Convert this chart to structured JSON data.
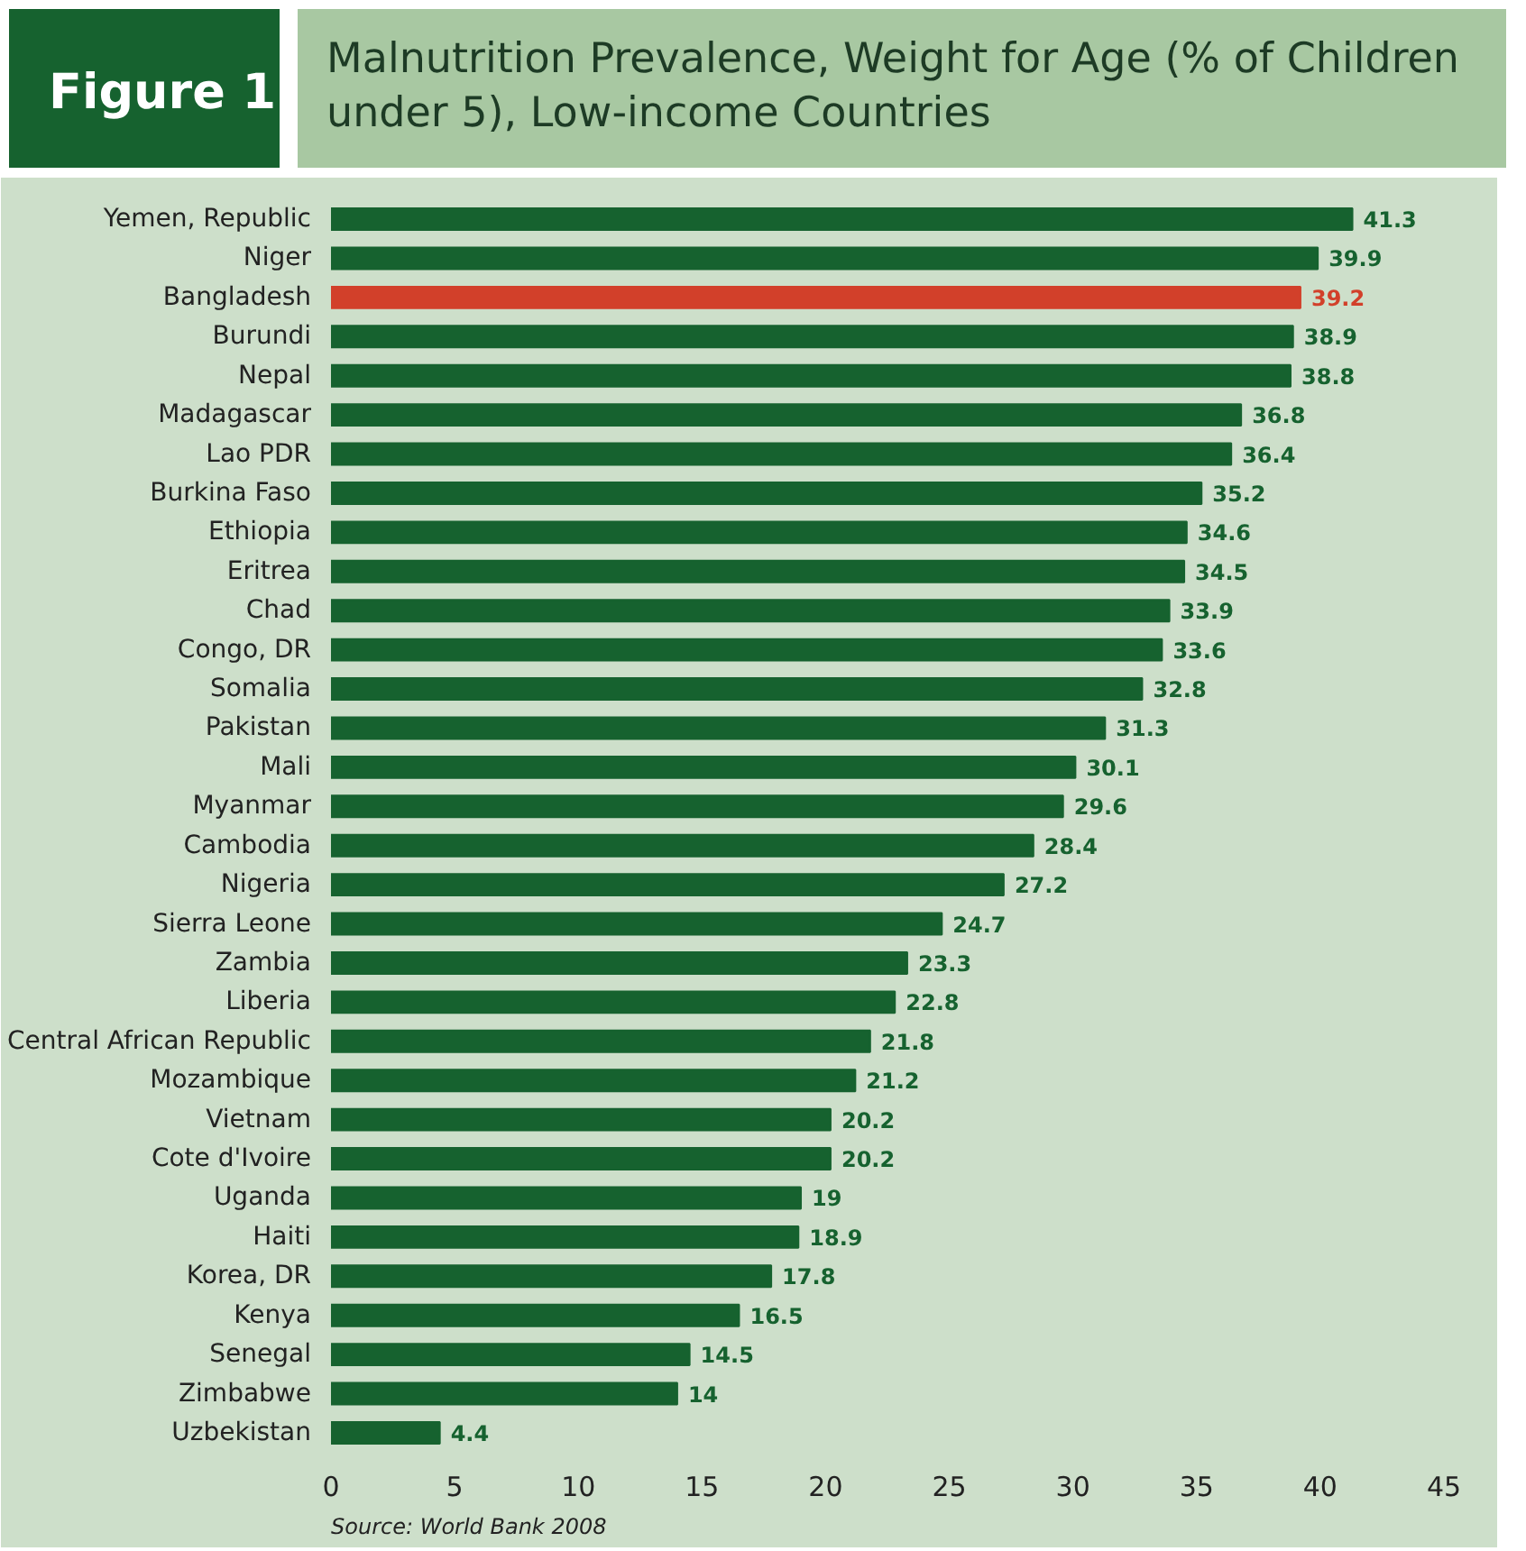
{
  "chart_data": {
    "type": "bar",
    "orientation": "horizontal",
    "title": "Malnutrition Prevalence, Weight for Age (% of Children under 5), Low-income Countries",
    "annotations": [
      "Figure 1",
      "Source: World Bank 2008"
    ],
    "categories": [
      "Yemen, Republic",
      "Niger",
      "Bangladesh",
      "Burundi",
      "Nepal",
      "Madagascar",
      "Lao PDR",
      "Burkina Faso",
      "Ethiopia",
      "Eritrea",
      "Chad",
      "Congo, DR",
      "Somalia",
      "Pakistan",
      "Mali",
      "Myanmar",
      "Cambodia",
      "Nigeria",
      "Sierra Leone",
      "Zambia",
      "Liberia",
      "Central African Republic",
      "Mozambique",
      "Vietnam",
      "Cote d'Ivoire",
      "Uganda",
      "Haiti",
      "Korea, DR",
      "Kenya",
      "Senegal",
      "Zimbabwe",
      "Uzbekistan"
    ],
    "values": [
      41.3,
      39.9,
      39.2,
      38.9,
      38.8,
      36.8,
      36.4,
      35.2,
      34.6,
      34.5,
      33.9,
      33.6,
      32.8,
      31.3,
      30.1,
      29.6,
      28.4,
      27.2,
      24.7,
      23.3,
      22.8,
      21.8,
      21.2,
      20.2,
      20.2,
      19,
      18.9,
      17.8,
      16.5,
      14.5,
      14,
      4.4
    ],
    "colors": [
      "#16622f",
      "#16622f",
      "#d2402a",
      "#16622f",
      "#16622f",
      "#16622f",
      "#16622f",
      "#16622f",
      "#16622f",
      "#16622f",
      "#16622f",
      "#16622f",
      "#16622f",
      "#16622f",
      "#16622f",
      "#16622f",
      "#16622f",
      "#16622f",
      "#16622f",
      "#16622f",
      "#16622f",
      "#16622f",
      "#16622f",
      "#16622f",
      "#16622f",
      "#16622f",
      "#16622f",
      "#16622f",
      "#16622f",
      "#16622f",
      "#16622f",
      "#16622f"
    ],
    "xlim": [
      0,
      45
    ],
    "xticks": [
      0,
      5,
      10,
      15,
      20,
      25,
      30,
      35,
      40,
      45
    ],
    "data_labels": true
  }
}
